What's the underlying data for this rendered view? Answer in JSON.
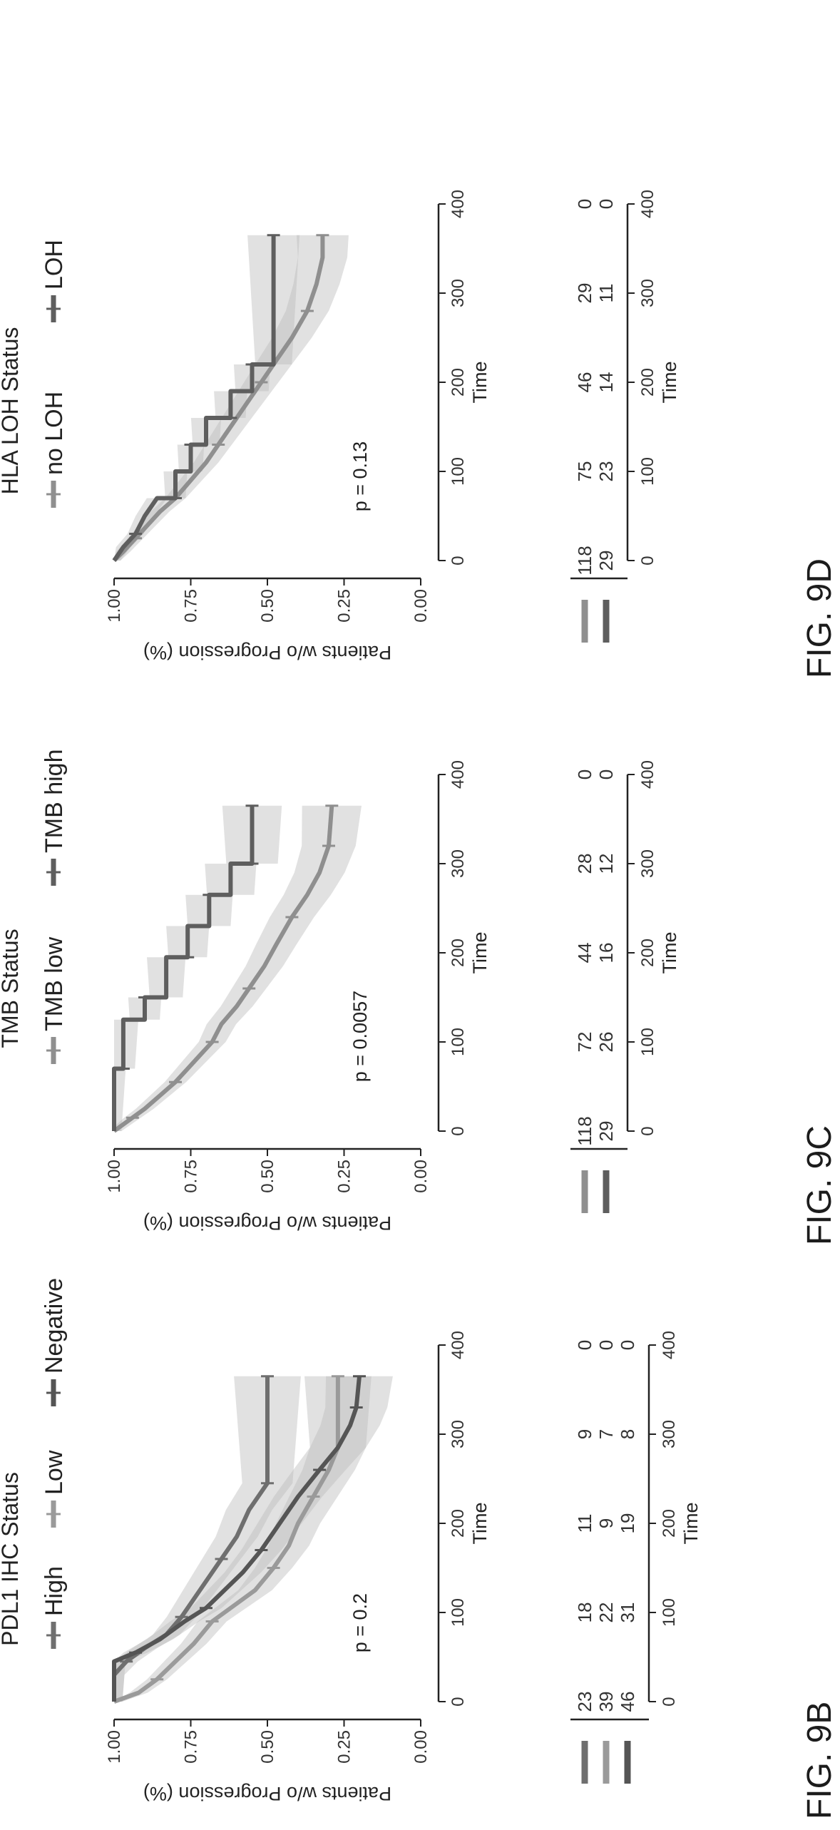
{
  "figures": [
    {
      "label": "FIG. 9B",
      "legend_title": "PDL1 IHC Status",
      "p_value": "p = 0.2"
    },
    {
      "label": "FIG. 9C",
      "legend_title": "TMB Status",
      "p_value": "p = 0.0057"
    },
    {
      "label": "FIG. 9D",
      "legend_title": "HLA LOH Status",
      "p_value": "p = 0.13"
    }
  ],
  "chart_data": [
    {
      "type": "line",
      "title": "PDL1 IHC Status",
      "xlabel": "Time",
      "ylabel": "Patients w/o Progression (%)",
      "xlim": [
        0,
        400
      ],
      "ylim": [
        0,
        1
      ],
      "x_ticks": [
        "0",
        "100",
        "200",
        "300",
        "400"
      ],
      "y_ticks": [
        "0.00",
        "0.25",
        "0.50",
        "0.75",
        "1.00"
      ],
      "p_value": "p = 0.2",
      "series": [
        {
          "name": "High",
          "color": "#6f6f6f",
          "points": [
            [
              0,
              1.0
            ],
            [
              30,
              1.0
            ],
            [
              45,
              0.96
            ],
            [
              60,
              0.9
            ],
            [
              75,
              0.83
            ],
            [
              95,
              0.78
            ],
            [
              115,
              0.74
            ],
            [
              135,
              0.7
            ],
            [
              160,
              0.65
            ],
            [
              185,
              0.6
            ],
            [
              215,
              0.56
            ],
            [
              245,
              0.5
            ],
            [
              270,
              0.5
            ],
            [
              365,
              0.5
            ]
          ]
        },
        {
          "name": "Low",
          "color": "#9a9a9a",
          "points": [
            [
              0,
              1.0
            ],
            [
              10,
              0.92
            ],
            [
              25,
              0.86
            ],
            [
              45,
              0.8
            ],
            [
              65,
              0.74
            ],
            [
              90,
              0.68
            ],
            [
              110,
              0.6
            ],
            [
              125,
              0.54
            ],
            [
              150,
              0.48
            ],
            [
              175,
              0.43
            ],
            [
              200,
              0.4
            ],
            [
              230,
              0.35
            ],
            [
              260,
              0.3
            ],
            [
              285,
              0.27
            ],
            [
              365,
              0.27
            ]
          ]
        },
        {
          "name": "Negative",
          "color": "#555555",
          "points": [
            [
              0,
              1.0
            ],
            [
              45,
              1.0
            ],
            [
              55,
              0.93
            ],
            [
              70,
              0.85
            ],
            [
              90,
              0.77
            ],
            [
              105,
              0.7
            ],
            [
              125,
              0.64
            ],
            [
              145,
              0.58
            ],
            [
              170,
              0.52
            ],
            [
              200,
              0.46
            ],
            [
              230,
              0.4
            ],
            [
              260,
              0.33
            ],
            [
              285,
              0.27
            ],
            [
              310,
              0.23
            ],
            [
              330,
              0.21
            ],
            [
              365,
              0.2
            ]
          ]
        }
      ],
      "risk_table": {
        "times": [
          0,
          100,
          200,
          300,
          400
        ],
        "rows": [
          {
            "name": "High",
            "counts": [
              "23",
              "18",
              "11",
              "9",
              "0"
            ]
          },
          {
            "name": "Low",
            "counts": [
              "39",
              "22",
              "9",
              "7",
              "0"
            ]
          },
          {
            "name": "Negative",
            "counts": [
              "46",
              "31",
              "19",
              "8",
              "0"
            ]
          }
        ],
        "xlabel": "Time"
      }
    },
    {
      "type": "line",
      "title": "TMB Status",
      "xlabel": "Time",
      "ylabel": "Patients w/o Progression (%)",
      "xlim": [
        0,
        400
      ],
      "ylim": [
        0,
        1
      ],
      "x_ticks": [
        "0",
        "100",
        "200",
        "300",
        "400"
      ],
      "y_ticks": [
        "0.00",
        "0.25",
        "0.50",
        "0.75",
        "1.00"
      ],
      "p_value": "p = 0.0057",
      "series": [
        {
          "name": "TMB low",
          "color": "#8f8f8f",
          "points": [
            [
              0,
              1.0
            ],
            [
              5,
              0.98
            ],
            [
              15,
              0.94
            ],
            [
              25,
              0.9
            ],
            [
              40,
              0.85
            ],
            [
              55,
              0.8
            ],
            [
              70,
              0.76
            ],
            [
              85,
              0.72
            ],
            [
              100,
              0.68
            ],
            [
              120,
              0.65
            ],
            [
              140,
              0.6
            ],
            [
              160,
              0.56
            ],
            [
              185,
              0.51
            ],
            [
              210,
              0.47
            ],
            [
              240,
              0.42
            ],
            [
              265,
              0.37
            ],
            [
              290,
              0.33
            ],
            [
              320,
              0.3
            ],
            [
              365,
              0.29
            ]
          ]
        },
        {
          "name": "TMB high",
          "color": "#5e5e5e",
          "points": [
            [
              0,
              1.0
            ],
            [
              70,
              1.0
            ],
            [
              70,
              0.97
            ],
            [
              125,
              0.97
            ],
            [
              125,
              0.9
            ],
            [
              150,
              0.9
            ],
            [
              150,
              0.83
            ],
            [
              195,
              0.83
            ],
            [
              195,
              0.76
            ],
            [
              230,
              0.76
            ],
            [
              230,
              0.69
            ],
            [
              265,
              0.69
            ],
            [
              265,
              0.62
            ],
            [
              300,
              0.62
            ],
            [
              300,
              0.55
            ],
            [
              365,
              0.55
            ]
          ]
        }
      ],
      "risk_table": {
        "times": [
          0,
          100,
          200,
          300,
          400
        ],
        "rows": [
          {
            "name": "TMB low",
            "counts": [
              "118",
              "72",
              "44",
              "28",
              "0"
            ]
          },
          {
            "name": "TMB high",
            "counts": [
              "29",
              "26",
              "16",
              "12",
              "0"
            ]
          }
        ],
        "xlabel": "Time"
      }
    },
    {
      "type": "line",
      "title": "HLA LOH Status",
      "xlabel": "Time",
      "ylabel": "Patients w/o Progression (%)",
      "xlim": [
        0,
        400
      ],
      "ylim": [
        0,
        1
      ],
      "x_ticks": [
        "0",
        "100",
        "200",
        "300",
        "400"
      ],
      "y_ticks": [
        "0.00",
        "0.25",
        "0.50",
        "0.75",
        "1.00"
      ],
      "p_value": "p = 0.13",
      "series": [
        {
          "name": "no LOH",
          "color": "#8f8f8f",
          "points": [
            [
              0,
              1.0
            ],
            [
              10,
              0.97
            ],
            [
              25,
              0.93
            ],
            [
              40,
              0.89
            ],
            [
              55,
              0.85
            ],
            [
              70,
              0.8
            ],
            [
              90,
              0.75
            ],
            [
              110,
              0.7
            ],
            [
              130,
              0.66
            ],
            [
              150,
              0.62
            ],
            [
              175,
              0.57
            ],
            [
              200,
              0.52
            ],
            [
              225,
              0.47
            ],
            [
              250,
              0.42
            ],
            [
              280,
              0.37
            ],
            [
              310,
              0.34
            ],
            [
              340,
              0.32
            ],
            [
              365,
              0.32
            ]
          ]
        },
        {
          "name": "LOH",
          "color": "#5e5e5e",
          "points": [
            [
              0,
              1.0
            ],
            [
              15,
              0.97
            ],
            [
              30,
              0.93
            ],
            [
              50,
              0.9
            ],
            [
              70,
              0.86
            ],
            [
              70,
              0.8
            ],
            [
              100,
              0.8
            ],
            [
              100,
              0.75
            ],
            [
              130,
              0.75
            ],
            [
              130,
              0.7
            ],
            [
              160,
              0.7
            ],
            [
              160,
              0.62
            ],
            [
              190,
              0.62
            ],
            [
              190,
              0.55
            ],
            [
              220,
              0.55
            ],
            [
              220,
              0.48
            ],
            [
              365,
              0.48
            ]
          ]
        }
      ],
      "risk_table": {
        "times": [
          0,
          100,
          200,
          300,
          400
        ],
        "rows": [
          {
            "name": "no LOH",
            "counts": [
              "118",
              "75",
              "46",
              "29",
              "0"
            ]
          },
          {
            "name": "LOH",
            "counts": [
              "29",
              "23",
              "14",
              "11",
              "0"
            ]
          }
        ],
        "xlabel": "Time"
      }
    }
  ]
}
